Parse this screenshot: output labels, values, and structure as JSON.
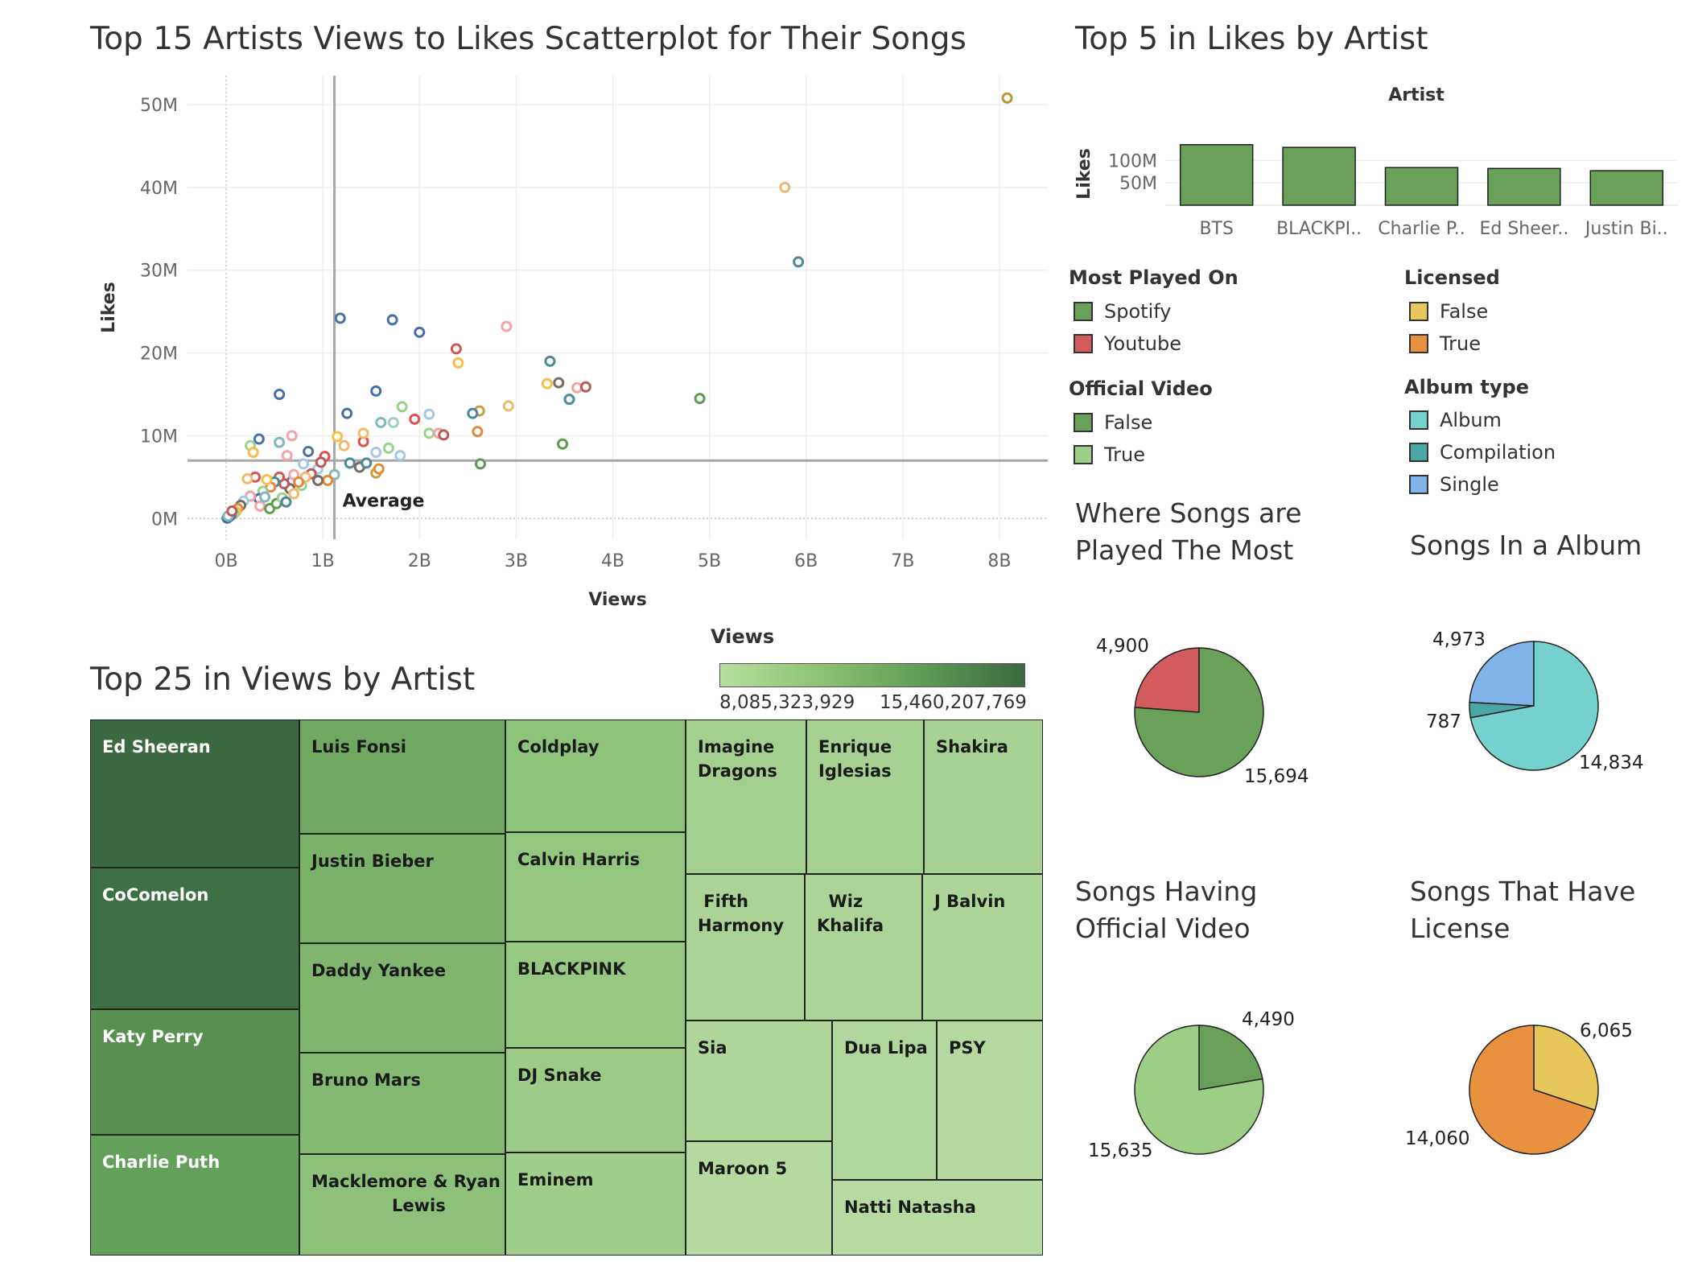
{
  "scatter": {
    "title": "Top 15 Artists Views to Likes Scatterplot for Their Songs",
    "chart_data": {
      "type": "scatter",
      "title": "Top 15 Artists Views to Likes Scatterplot for Their Songs",
      "xlabel": "Views",
      "ylabel": "Likes",
      "xlim": [
        -0.4,
        8.5
      ],
      "ylim": [
        -2.5,
        53.5
      ],
      "x_ticks": [
        "0B",
        "1B",
        "2B",
        "3B",
        "4B",
        "5B",
        "6B",
        "7B",
        "8B"
      ],
      "y_ticks": [
        "0M",
        "10M",
        "20M",
        "30M",
        "40M",
        "50M"
      ],
      "reference_lines": {
        "label": "Average",
        "x": 1.12,
        "y": 7.0
      },
      "points": [
        {
          "x": 8.08,
          "y": 50.8,
          "c": "#b89b2f"
        },
        {
          "x": 5.78,
          "y": 40.0,
          "c": "#f0b96e"
        },
        {
          "x": 5.92,
          "y": 31.0,
          "c": "#4b8a9a"
        },
        {
          "x": 4.9,
          "y": 14.5,
          "c": "#5a9e4d"
        },
        {
          "x": 3.48,
          "y": 9.0,
          "c": "#5a9e4d"
        },
        {
          "x": 3.35,
          "y": 19.0,
          "c": "#4b8a9a"
        },
        {
          "x": 3.32,
          "y": 16.3,
          "c": "#f5c04a"
        },
        {
          "x": 3.44,
          "y": 16.4,
          "c": "#7a6a60"
        },
        {
          "x": 3.55,
          "y": 14.4,
          "c": "#4b8a9a"
        },
        {
          "x": 3.63,
          "y": 15.8,
          "c": "#f2a4a8"
        },
        {
          "x": 3.72,
          "y": 15.9,
          "c": "#b85a5a"
        },
        {
          "x": 2.9,
          "y": 23.2,
          "c": "#f2a4a8"
        },
        {
          "x": 2.92,
          "y": 13.6,
          "c": "#f0b96e"
        },
        {
          "x": 2.62,
          "y": 13.0,
          "c": "#c8a03a"
        },
        {
          "x": 2.55,
          "y": 12.7,
          "c": "#4b8a9a"
        },
        {
          "x": 2.6,
          "y": 10.5,
          "c": "#e2893a"
        },
        {
          "x": 2.63,
          "y": 6.6,
          "c": "#5a9e4d"
        },
        {
          "x": 2.38,
          "y": 20.5,
          "c": "#d9534f"
        },
        {
          "x": 2.4,
          "y": 18.8,
          "c": "#f5c04a"
        },
        {
          "x": 2.0,
          "y": 22.5,
          "c": "#4a6fa5"
        },
        {
          "x": 1.72,
          "y": 24.0,
          "c": "#4a6fa5"
        },
        {
          "x": 1.18,
          "y": 24.2,
          "c": "#4a6fa5"
        },
        {
          "x": 0.55,
          "y": 15.0,
          "c": "#4a6fa5"
        },
        {
          "x": 1.55,
          "y": 15.4,
          "c": "#4a6fa5"
        },
        {
          "x": 1.25,
          "y": 12.7,
          "c": "#4a6fa5"
        },
        {
          "x": 1.82,
          "y": 13.5,
          "c": "#9ad18b"
        },
        {
          "x": 2.1,
          "y": 12.6,
          "c": "#a6c8e8"
        },
        {
          "x": 1.6,
          "y": 11.6,
          "c": "#7fb9bd"
        },
        {
          "x": 1.73,
          "y": 11.6,
          "c": "#9bd1c7"
        },
        {
          "x": 1.95,
          "y": 12.0,
          "c": "#d9534f"
        },
        {
          "x": 2.1,
          "y": 10.3,
          "c": "#9ad18b"
        },
        {
          "x": 2.2,
          "y": 10.3,
          "c": "#f5a3a0"
        },
        {
          "x": 2.25,
          "y": 10.1,
          "c": "#b85a5a"
        },
        {
          "x": 0.34,
          "y": 9.6,
          "c": "#4a6fa5"
        },
        {
          "x": 0.25,
          "y": 8.8,
          "c": "#9ad18b"
        },
        {
          "x": 0.28,
          "y": 8.0,
          "c": "#f5c04a"
        },
        {
          "x": 0.55,
          "y": 9.2,
          "c": "#7fb9bd"
        },
        {
          "x": 0.68,
          "y": 10.0,
          "c": "#f2a4a8"
        },
        {
          "x": 0.85,
          "y": 8.1,
          "c": "#4a6fa5"
        },
        {
          "x": 0.63,
          "y": 7.6,
          "c": "#f2a4a8"
        },
        {
          "x": 0.8,
          "y": 6.6,
          "c": "#a6c8e8"
        },
        {
          "x": 1.02,
          "y": 7.5,
          "c": "#d9534f"
        },
        {
          "x": 1.15,
          "y": 9.9,
          "c": "#f5c04a"
        },
        {
          "x": 1.22,
          "y": 8.8,
          "c": "#f0b96e"
        },
        {
          "x": 1.42,
          "y": 9.3,
          "c": "#d9534f"
        },
        {
          "x": 1.42,
          "y": 10.3,
          "c": "#f0b96e"
        },
        {
          "x": 1.55,
          "y": 8.0,
          "c": "#a6c8e8"
        },
        {
          "x": 1.68,
          "y": 8.5,
          "c": "#9ad18b"
        },
        {
          "x": 1.8,
          "y": 7.6,
          "c": "#a6c8e8"
        },
        {
          "x": 1.28,
          "y": 6.7,
          "c": "#4b8a9a"
        },
        {
          "x": 1.38,
          "y": 6.2,
          "c": "#7a6a60"
        },
        {
          "x": 1.45,
          "y": 6.7,
          "c": "#4b8a9a"
        },
        {
          "x": 1.55,
          "y": 5.5,
          "c": "#c8a03a"
        },
        {
          "x": 1.58,
          "y": 6.0,
          "c": "#e2893a"
        },
        {
          "x": 1.12,
          "y": 5.3,
          "c": "#7fb9bd"
        },
        {
          "x": 1.05,
          "y": 4.6,
          "c": "#e2893a"
        },
        {
          "x": 0.95,
          "y": 6.0,
          "c": "#a6c8e8"
        },
        {
          "x": 0.98,
          "y": 6.8,
          "c": "#b85a5a"
        },
        {
          "x": 0.88,
          "y": 5.4,
          "c": "#b85a5a"
        },
        {
          "x": 0.95,
          "y": 4.6,
          "c": "#7a6a60"
        },
        {
          "x": 0.78,
          "y": 4.0,
          "c": "#9ad18b"
        },
        {
          "x": 0.82,
          "y": 5.0,
          "c": "#f0b96e"
        },
        {
          "x": 0.68,
          "y": 4.5,
          "c": "#4b8a9a"
        },
        {
          "x": 0.7,
          "y": 5.3,
          "c": "#f2a4a8"
        },
        {
          "x": 0.66,
          "y": 3.6,
          "c": "#7a6a60"
        },
        {
          "x": 0.6,
          "y": 4.2,
          "c": "#b85a5a"
        },
        {
          "x": 0.55,
          "y": 5.0,
          "c": "#d9534f"
        },
        {
          "x": 0.5,
          "y": 4.4,
          "c": "#4b8a9a"
        },
        {
          "x": 0.46,
          "y": 3.8,
          "c": "#e2893a"
        },
        {
          "x": 0.42,
          "y": 4.7,
          "c": "#f5c04a"
        },
        {
          "x": 0.38,
          "y": 3.3,
          "c": "#9ad18b"
        },
        {
          "x": 0.34,
          "y": 2.4,
          "c": "#4a6fa5"
        },
        {
          "x": 0.3,
          "y": 5.0,
          "c": "#d9534f"
        },
        {
          "x": 0.22,
          "y": 4.8,
          "c": "#f0b96e"
        },
        {
          "x": 0.25,
          "y": 2.7,
          "c": "#f2a4a8"
        },
        {
          "x": 0.18,
          "y": 2.1,
          "c": "#a6c8e8"
        },
        {
          "x": 0.15,
          "y": 1.6,
          "c": "#7a6a60"
        },
        {
          "x": 0.12,
          "y": 1.2,
          "c": "#e2893a"
        },
        {
          "x": 0.1,
          "y": 0.8,
          "c": "#f5c04a"
        },
        {
          "x": 0.08,
          "y": 0.6,
          "c": "#9ad18b"
        },
        {
          "x": 0.05,
          "y": 0.4,
          "c": "#4b8a9a"
        },
        {
          "x": 0.03,
          "y": 0.2,
          "c": "#4a6fa5"
        },
        {
          "x": 0.01,
          "y": 0.05,
          "c": "#4a6fa5"
        },
        {
          "x": 0.02,
          "y": 0.3,
          "c": "#7fb9bd"
        },
        {
          "x": 0.06,
          "y": 0.9,
          "c": "#b85a5a"
        },
        {
          "x": 0.35,
          "y": 1.5,
          "c": "#f5a3a0"
        },
        {
          "x": 0.4,
          "y": 2.6,
          "c": "#7fb9bd"
        },
        {
          "x": 0.45,
          "y": 1.2,
          "c": "#5a9e4d"
        },
        {
          "x": 0.52,
          "y": 1.8,
          "c": "#5a9e4d"
        },
        {
          "x": 0.58,
          "y": 2.5,
          "c": "#9ad18b"
        },
        {
          "x": 0.62,
          "y": 2.0,
          "c": "#4b8a9a"
        },
        {
          "x": 0.7,
          "y": 3.0,
          "c": "#f0b96e"
        },
        {
          "x": 0.75,
          "y": 4.4,
          "c": "#e2893a"
        }
      ]
    }
  },
  "bar": {
    "title": "Top 5 in Likes by Artist",
    "chart_data": {
      "type": "bar",
      "header": "Artist",
      "ylabel": "Likes",
      "categories": [
        "BTS",
        "BLACKPI..",
        "Charlie P..",
        "Ed Sheer..",
        "Justin Bi.."
      ],
      "values": [
        135,
        129,
        84,
        82,
        77
      ],
      "unit": "M",
      "y_ticks": [
        "50M",
        "100M"
      ],
      "ylim": [
        0,
        140
      ],
      "color": "#6aa15a"
    }
  },
  "legends": {
    "most_played": {
      "title": "Most Played On",
      "items": [
        {
          "label": "Spotify",
          "color": "#6aa15a"
        },
        {
          "label": "Youtube",
          "color": "#d45c5c"
        }
      ]
    },
    "licensed": {
      "title": "Licensed",
      "items": [
        {
          "label": "False",
          "color": "#e8c75a"
        },
        {
          "label": "True",
          "color": "#e8913f"
        }
      ]
    },
    "official_video": {
      "title": "Official Video",
      "items": [
        {
          "label": "False",
          "color": "#6aa15a"
        },
        {
          "label": "True",
          "color": "#9dce85"
        }
      ]
    },
    "album_type": {
      "title": "Album type",
      "items": [
        {
          "label": "Album",
          "color": "#74d1cc"
        },
        {
          "label": "Compilation",
          "color": "#4aa7a4"
        },
        {
          "label": "Single",
          "color": "#80b4e8"
        }
      ]
    }
  },
  "treemap": {
    "title": "Top 25 in Views by Artist",
    "legend_title": "Views",
    "legend_min": "8,085,323,929",
    "legend_max": "15,460,207,769",
    "cells": [
      {
        "label": "Ed Sheeran",
        "bg": "#3b6a42",
        "fg": "#ffffff"
      },
      {
        "label": "CoComelon",
        "bg": "#3e7046",
        "fg": "#ffffff"
      },
      {
        "label": "Katy Perry",
        "bg": "#57904f",
        "fg": "#ffffff"
      },
      {
        "label": "Charlie Puth",
        "bg": "#63a05a",
        "fg": "#ffffff"
      },
      {
        "label": "Luis Fonsi",
        "bg": "#6fa860",
        "fg": "#1a1a1a"
      },
      {
        "label": "Justin Bieber",
        "bg": "#7ab26a",
        "fg": "#1a1a1a"
      },
      {
        "label": "Daddy Yankee",
        "bg": "#7fb56d",
        "fg": "#1a1a1a"
      },
      {
        "label": "Bruno Mars",
        "bg": "#84b972",
        "fg": "#1a1a1a"
      },
      {
        "label": "Macklemore & Ryan Lewis",
        "bg": "#8dc079",
        "fg": "#1a1a1a"
      },
      {
        "label": "Coldplay",
        "bg": "#8ec37a",
        "fg": "#1a1a1a"
      },
      {
        "label": "Calvin Harris",
        "bg": "#93c67f",
        "fg": "#1a1a1a"
      },
      {
        "label": "BLACKPINK",
        "bg": "#96c882",
        "fg": "#1a1a1a"
      },
      {
        "label": "DJ Snake",
        "bg": "#9bcb86",
        "fg": "#1a1a1a"
      },
      {
        "label": "Eminem",
        "bg": "#9fcd8a",
        "fg": "#1a1a1a"
      },
      {
        "label": "Imagine Dragons",
        "bg": "#a4d08f",
        "fg": "#1a1a1a"
      },
      {
        "label": "Enrique Iglesias",
        "bg": "#a6d191",
        "fg": "#1a1a1a"
      },
      {
        "label": "Shakira",
        "bg": "#a8d293",
        "fg": "#1a1a1a"
      },
      {
        "label": "Fifth Harmony",
        "bg": "#abd396",
        "fg": "#1a1a1a"
      },
      {
        "label": "Wiz Khalifa",
        "bg": "#acd497",
        "fg": "#1a1a1a"
      },
      {
        "label": "J Balvin",
        "bg": "#aed598",
        "fg": "#1a1a1a"
      },
      {
        "label": "Sia",
        "bg": "#b0d69a",
        "fg": "#1a1a1a"
      },
      {
        "label": "Dua Lipa",
        "bg": "#b2d79c",
        "fg": "#1a1a1a"
      },
      {
        "label": "PSY",
        "bg": "#b4d89e",
        "fg": "#1a1a1a"
      },
      {
        "label": "Maroon 5",
        "bg": "#b5d99f",
        "fg": "#1a1a1a"
      },
      {
        "label": "Natti Natasha",
        "bg": "#b7daa1",
        "fg": "#1a1a1a"
      }
    ]
  },
  "pies": [
    {
      "title": "Where Songs are Played The Most",
      "labels": [
        "4,900",
        "15,694"
      ],
      "chart_data": {
        "type": "pie",
        "values": [
          4900,
          15694
        ],
        "colors": [
          "#d45c5c",
          "#6aa15a"
        ],
        "start": "top-ccw"
      }
    },
    {
      "title": "Songs In a Album",
      "labels": [
        "4,973",
        "787",
        "14,834"
      ],
      "chart_data": {
        "type": "pie",
        "values": [
          4973,
          787,
          14834
        ],
        "colors": [
          "#80b4e8",
          "#4aa7a4",
          "#74d1cc"
        ],
        "start": "top-ccw"
      }
    },
    {
      "title": "Songs Having Official Video",
      "labels": [
        "4,490",
        "15,635"
      ],
      "chart_data": {
        "type": "pie",
        "values": [
          4490,
          15635
        ],
        "colors": [
          "#6aa15a",
          "#9dce85"
        ],
        "start": "top-cw"
      }
    },
    {
      "title": "Songs That Have License",
      "labels": [
        "6,065",
        "14,060"
      ],
      "chart_data": {
        "type": "pie",
        "values": [
          6065,
          14060
        ],
        "colors": [
          "#e8c75a",
          "#e8913f"
        ],
        "start": "top-cw"
      }
    }
  ]
}
